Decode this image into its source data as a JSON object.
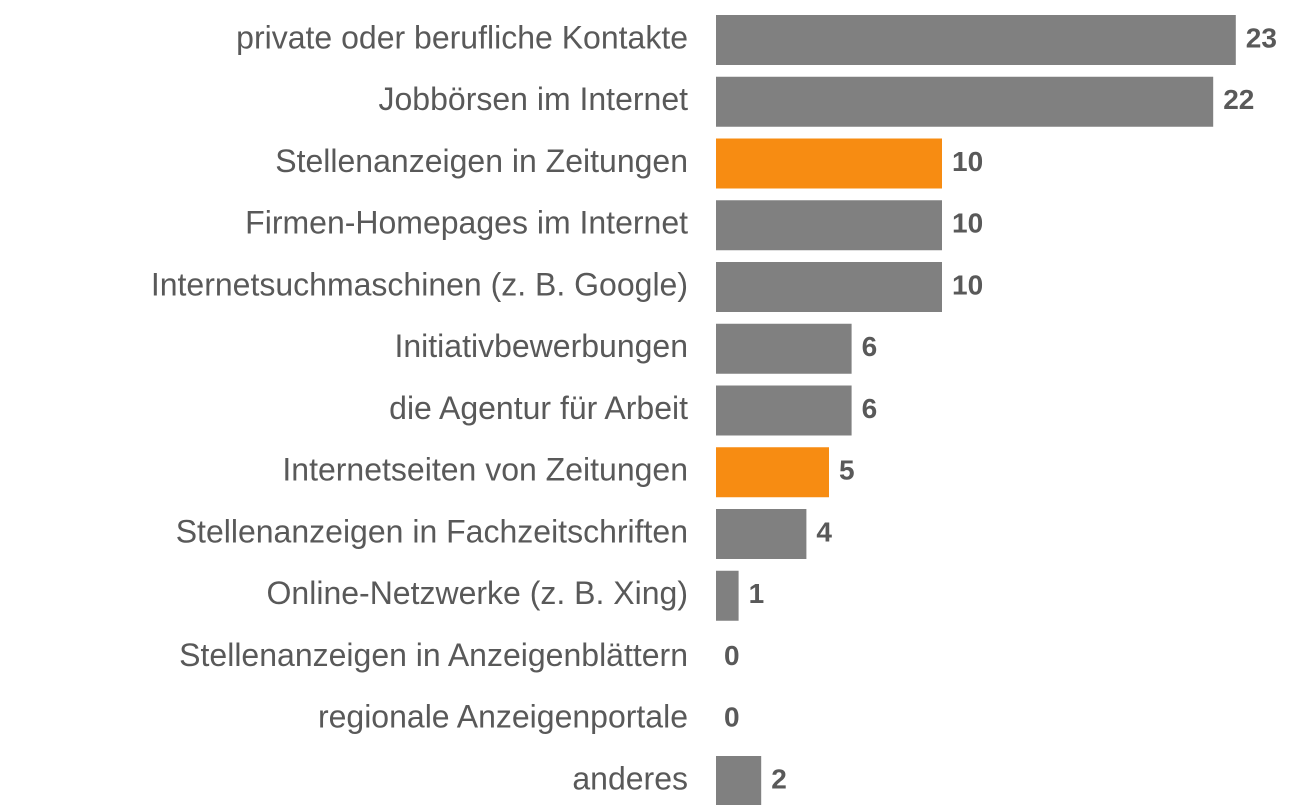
{
  "chart_data": {
    "type": "bar",
    "orientation": "horizontal",
    "categories": [
      "private oder berufliche Kontakte",
      "Jobbörsen im Internet",
      "Stellenanzeigen in Zeitungen",
      "Firmen-Homepages im Internet",
      "Internetsuchmaschinen (z. B. Google)",
      "Initiativbewerbungen",
      "die Agentur für Arbeit",
      "Internetseiten von Zeitungen",
      "Stellenanzeigen in Fachzeitschriften",
      "Online-Netzwerke (z. B. Xing)",
      "Stellenanzeigen in Anzeigenblättern",
      "regionale Anzeigenportale",
      "anderes"
    ],
    "values": [
      23,
      22,
      10,
      10,
      10,
      6,
      6,
      5,
      4,
      1,
      0,
      0,
      2
    ],
    "colors": [
      "#808080",
      "#808080",
      "#f78c12",
      "#808080",
      "#808080",
      "#808080",
      "#808080",
      "#f78c12",
      "#808080",
      "#808080",
      "#808080",
      "#808080",
      "#808080"
    ]
  }
}
